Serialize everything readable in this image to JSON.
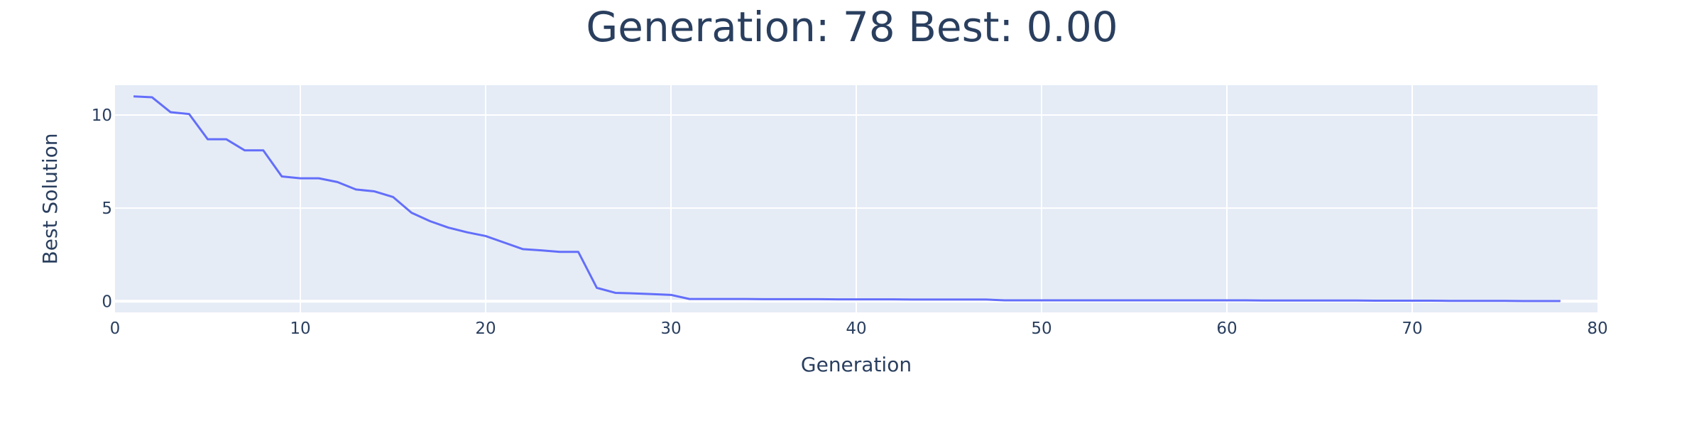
{
  "chart_data": {
    "type": "line",
    "title": "Generation: 78 Best: 0.00",
    "xlabel": "Generation",
    "ylabel": "Best Solution",
    "xlim": [
      0,
      80
    ],
    "ylim": [
      -0.6,
      11.6
    ],
    "x_ticks": [
      0,
      10,
      20,
      30,
      40,
      50,
      60,
      70,
      80
    ],
    "y_ticks": [
      0,
      5,
      10
    ],
    "grid": true,
    "legend": "none",
    "colors": {
      "line": "#636efa",
      "plot_bg": "#e5ecf6",
      "grid": "#ffffff",
      "text": "#2a3f5f"
    },
    "series": [
      {
        "x": [
          1,
          2,
          3,
          4,
          5,
          6,
          7,
          8,
          9,
          10,
          11,
          12,
          13,
          14,
          15,
          16,
          17,
          18,
          19,
          20,
          21,
          22,
          23,
          24,
          25,
          26,
          27,
          28,
          29,
          30,
          31,
          32,
          33,
          34,
          35,
          36,
          37,
          38,
          39,
          40,
          41,
          42,
          43,
          44,
          45,
          46,
          47,
          48,
          49,
          50,
          51,
          52,
          53,
          54,
          55,
          56,
          57,
          58,
          59,
          60,
          61,
          62,
          63,
          64,
          65,
          66,
          67,
          68,
          69,
          70,
          71,
          72,
          73,
          74,
          75,
          76,
          77,
          78
        ],
        "y": [
          11.0,
          10.95,
          10.15,
          10.05,
          8.7,
          8.7,
          8.1,
          8.1,
          6.7,
          6.6,
          6.6,
          6.4,
          6.0,
          5.9,
          5.6,
          4.75,
          4.3,
          3.95,
          3.7,
          3.5,
          3.15,
          2.8,
          2.73,
          2.65,
          2.65,
          0.72,
          0.45,
          0.42,
          0.38,
          0.34,
          0.12,
          0.12,
          0.12,
          0.12,
          0.11,
          0.11,
          0.11,
          0.11,
          0.1,
          0.1,
          0.1,
          0.1,
          0.09,
          0.09,
          0.09,
          0.09,
          0.09,
          0.05,
          0.05,
          0.05,
          0.05,
          0.05,
          0.05,
          0.05,
          0.05,
          0.05,
          0.05,
          0.05,
          0.05,
          0.05,
          0.05,
          0.04,
          0.04,
          0.04,
          0.04,
          0.04,
          0.04,
          0.03,
          0.03,
          0.03,
          0.03,
          0.02,
          0.02,
          0.02,
          0.02,
          0.01,
          0.01,
          0.01
        ]
      }
    ]
  }
}
